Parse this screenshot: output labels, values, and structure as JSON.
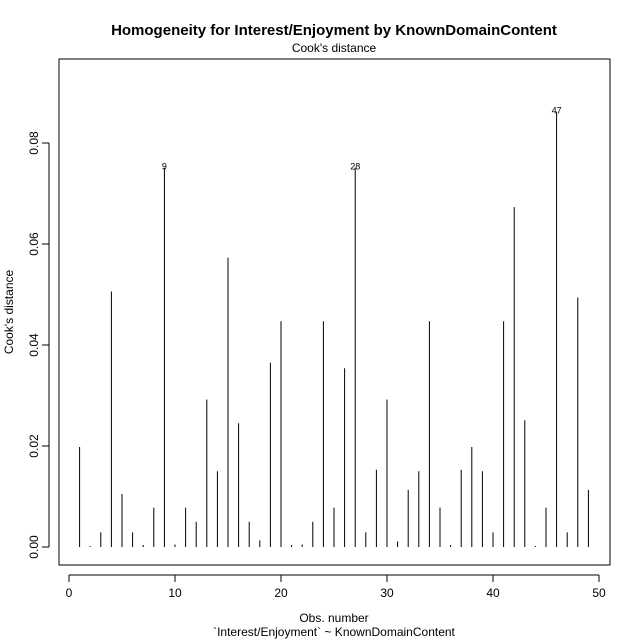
{
  "chart_data": {
    "type": "bar",
    "title": "Homogeneity for Interest/Enjoyment by KnownDomainContent",
    "subtitle": "Cook's distance",
    "xlabel": "Obs. number",
    "xlabel2": "`Interest/Enjoyment` ~ KnownDomainContent",
    "ylabel": "Cook's distance",
    "xlim": [
      0,
      50
    ],
    "ylim": [
      -0.003,
      0.0965
    ],
    "x_ticks": [
      0,
      10,
      20,
      30,
      40,
      50
    ],
    "y_ticks": [
      0.0,
      0.02,
      0.04,
      0.06,
      0.08
    ],
    "y_tick_labels": [
      "0.00",
      "0.02",
      "0.04",
      "0.06",
      "0.08"
    ],
    "x": [
      1,
      2,
      3,
      4,
      5,
      6,
      7,
      8,
      9,
      10,
      11,
      12,
      13,
      14,
      15,
      16,
      17,
      18,
      19,
      20,
      21,
      22,
      23,
      24,
      25,
      26,
      27,
      28,
      29,
      30,
      31,
      32,
      33,
      34,
      35,
      36,
      37,
      38,
      39,
      40,
      41,
      42,
      43,
      44,
      45,
      46,
      47,
      48,
      49
    ],
    "values": [
      0.0198,
      0.0002,
      0.0029,
      0.0506,
      0.0105,
      0.0029,
      0.0004,
      0.0078,
      0.0751,
      0.0005,
      0.0078,
      0.005,
      0.0292,
      0.015,
      0.0573,
      0.0245,
      0.005,
      0.0013,
      0.0365,
      0.0447,
      0.0004,
      0.0005,
      0.005,
      0.0447,
      0.0078,
      0.0354,
      0.0751,
      0.0029,
      0.0153,
      0.0292,
      0.0011,
      0.0113,
      0.015,
      0.0447,
      0.0078,
      0.0004,
      0.0153,
      0.0198,
      0.015,
      0.0029,
      0.0447,
      0.0673,
      0.0251,
      0.0002,
      0.0078,
      0.0862,
      0.0029,
      0.0494,
      0.0113
    ],
    "labeled_points": [
      {
        "x": 9,
        "label": "9"
      },
      {
        "x": 27,
        "label": "28"
      },
      {
        "x": 46,
        "label": "47"
      }
    ],
    "grid": false,
    "legend": "none"
  }
}
